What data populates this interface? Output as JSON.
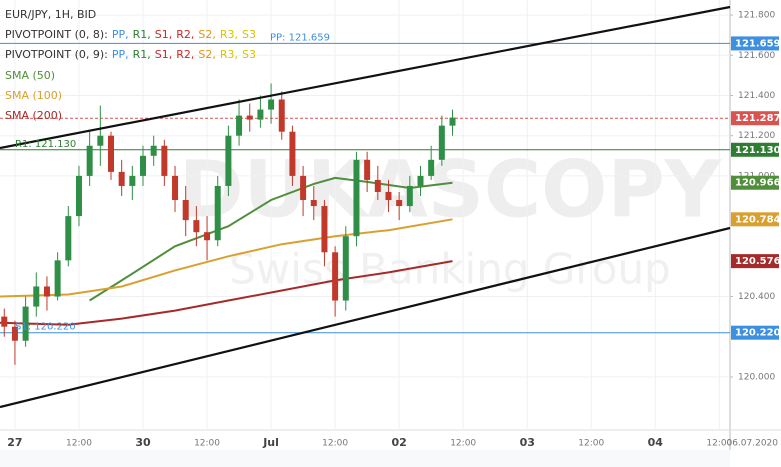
{
  "chart_data": {
    "type": "candlestick",
    "title": "EUR/JPY, 1H, BID",
    "indicators": [
      {
        "name": "PIVOTPOINT (0, 8):",
        "items": [
          {
            "text": "PP,",
            "color": "#3d8fe0"
          },
          {
            "text": "R1,",
            "color": "#2e7d32"
          },
          {
            "text": "S1,",
            "color": "#c62828"
          },
          {
            "text": "R2,",
            "color": "#c62828"
          },
          {
            "text": "S2,",
            "color": "#e69500"
          },
          {
            "text": "R3,",
            "color": "#d6c400"
          },
          {
            "text": "S3",
            "color": "#d6c400"
          }
        ]
      },
      {
        "name": "PIVOTPOINT (0, 9):",
        "items": [
          {
            "text": "PP,",
            "color": "#3d8fe0"
          },
          {
            "text": "R1,",
            "color": "#2e7d32"
          },
          {
            "text": "S1,",
            "color": "#c62828"
          },
          {
            "text": "R2,",
            "color": "#c62828"
          },
          {
            "text": "S2,",
            "color": "#e69500"
          },
          {
            "text": "R3,",
            "color": "#d6c400"
          },
          {
            "text": "S3",
            "color": "#d6c400"
          }
        ]
      }
    ],
    "watermark": [
      "DUKASCOPY",
      "Swiss Banking Group"
    ],
    "date_label": "06.07.2020",
    "up_color": "#2f8f46",
    "down_color": "#c0392b",
    "x": [
      -2,
      0,
      2,
      4,
      6,
      8,
      10,
      12,
      14,
      16,
      18,
      20,
      22,
      24,
      26,
      28,
      30,
      32,
      34,
      36,
      38,
      40,
      42,
      44,
      46,
      48,
      50,
      52,
      54,
      56,
      58,
      60,
      62,
      64,
      66,
      68,
      70,
      72,
      74,
      76,
      78,
      80,
      82
    ],
    "open": [
      120.3,
      120.25,
      120.18,
      120.35,
      120.45,
      120.4,
      120.58,
      120.8,
      121.0,
      121.15,
      121.2,
      121.02,
      120.95,
      121.0,
      121.1,
      121.15,
      121.0,
      120.88,
      120.78,
      120.72,
      120.68,
      120.95,
      121.2,
      121.3,
      121.28,
      121.33,
      121.38,
      121.22,
      121.0,
      120.88,
      120.85,
      120.62,
      120.38,
      120.7,
      121.08,
      120.98,
      120.92,
      120.88,
      120.85,
      120.95,
      121.0,
      121.08,
      121.25
    ],
    "high": [
      120.34,
      120.28,
      120.4,
      120.52,
      120.5,
      120.62,
      120.85,
      121.05,
      121.22,
      121.35,
      121.22,
      121.08,
      121.05,
      121.15,
      121.2,
      121.18,
      121.05,
      120.95,
      120.85,
      120.8,
      121.0,
      121.25,
      121.38,
      121.36,
      121.4,
      121.46,
      121.42,
      121.25,
      121.05,
      120.95,
      120.88,
      120.65,
      120.75,
      121.12,
      121.12,
      121.05,
      120.98,
      120.92,
      121.0,
      121.05,
      121.15,
      121.3,
      121.33
    ],
    "low": [
      120.2,
      120.06,
      120.15,
      120.3,
      120.33,
      120.38,
      120.55,
      120.75,
      120.95,
      121.05,
      120.98,
      120.9,
      120.88,
      120.95,
      121.05,
      120.95,
      120.82,
      120.7,
      120.65,
      120.58,
      120.65,
      120.9,
      121.15,
      121.22,
      121.24,
      121.26,
      121.18,
      120.95,
      120.8,
      120.78,
      120.55,
      120.3,
      120.33,
      120.65,
      120.92,
      120.88,
      120.82,
      120.78,
      120.82,
      120.9,
      120.98,
      121.05,
      121.2
    ],
    "close": [
      120.25,
      120.18,
      120.35,
      120.45,
      120.4,
      120.58,
      120.8,
      121.0,
      121.15,
      121.2,
      121.02,
      120.95,
      121.0,
      121.1,
      121.15,
      121.0,
      120.88,
      120.78,
      120.72,
      120.68,
      120.95,
      121.2,
      121.3,
      121.28,
      121.33,
      121.38,
      121.22,
      121.0,
      120.88,
      120.85,
      120.62,
      120.38,
      120.7,
      121.08,
      120.98,
      120.92,
      120.88,
      120.85,
      120.95,
      121.0,
      121.08,
      121.25,
      121.29
    ],
    "last": {
      "value": 121.287,
      "label": "121.287",
      "color": "#d9534f"
    },
    "series": [
      {
        "name": "SMA (50)",
        "color": "#4f8f3a",
        "x": [
          14,
          20,
          30,
          40,
          48,
          56,
          60,
          66,
          74,
          82
        ],
        "values": [
          120.38,
          120.48,
          120.65,
          120.75,
          120.88,
          120.96,
          120.99,
          120.97,
          120.94,
          120.966
        ],
        "last_label": "120.966"
      },
      {
        "name": "SMA (100)",
        "color": "#d9a030",
        "x": [
          -3,
          10,
          20,
          30,
          40,
          50,
          60,
          70,
          82
        ],
        "values": [
          120.4,
          120.41,
          120.45,
          120.53,
          120.6,
          120.66,
          120.7,
          120.73,
          120.784
        ],
        "last_label": "120.784"
      },
      {
        "name": "SMA (200)",
        "color": "#a52a2a",
        "x": [
          -3,
          10,
          20,
          30,
          40,
          50,
          60,
          70,
          82
        ],
        "values": [
          120.27,
          120.26,
          120.29,
          120.33,
          120.38,
          120.43,
          120.48,
          120.52,
          120.576
        ],
        "last_label": "120.576"
      }
    ],
    "levels": [
      {
        "label": "PP: 121.659",
        "value": 121.659,
        "value_label": "121.659",
        "color": "#3d8fe0"
      },
      {
        "label": "R1: 121.130",
        "value": 121.13,
        "value_label": "121.130",
        "color": "#2e7d32"
      },
      {
        "label": "S1: 120.220",
        "value": 120.22,
        "value_label": "120.220",
        "color": "#3d8fe0"
      }
    ],
    "xlim": [
      -2.8,
      134
    ],
    "xticks": [
      {
        "value": 0,
        "label": "27"
      },
      {
        "value": 12,
        "label": "12:00"
      },
      {
        "value": 24,
        "label": "30"
      },
      {
        "value": 36,
        "label": "12:00"
      },
      {
        "value": 48,
        "label": "Jul"
      },
      {
        "value": 60,
        "label": "12:00"
      },
      {
        "value": 72,
        "label": "02"
      },
      {
        "value": 84,
        "label": "12:00"
      },
      {
        "value": 96,
        "label": "03"
      },
      {
        "value": 108,
        "label": "12:00"
      },
      {
        "value": 120,
        "label": "04"
      },
      {
        "value": 132,
        "label": "12:00"
      }
    ],
    "ylim": [
      119.736,
      121.875
    ],
    "yticks": [
      {
        "value": 120.0,
        "label": "120.000"
      },
      {
        "value": 120.4,
        "label": "120.400"
      },
      {
        "value": 121.0,
        "label": "121.000"
      },
      {
        "value": 121.2,
        "label": "121.200"
      },
      {
        "value": 121.4,
        "label": "121.400"
      },
      {
        "value": 121.6,
        "label": "121.600"
      },
      {
        "value": 121.8,
        "label": "121.800"
      }
    ],
    "grid": true
  }
}
